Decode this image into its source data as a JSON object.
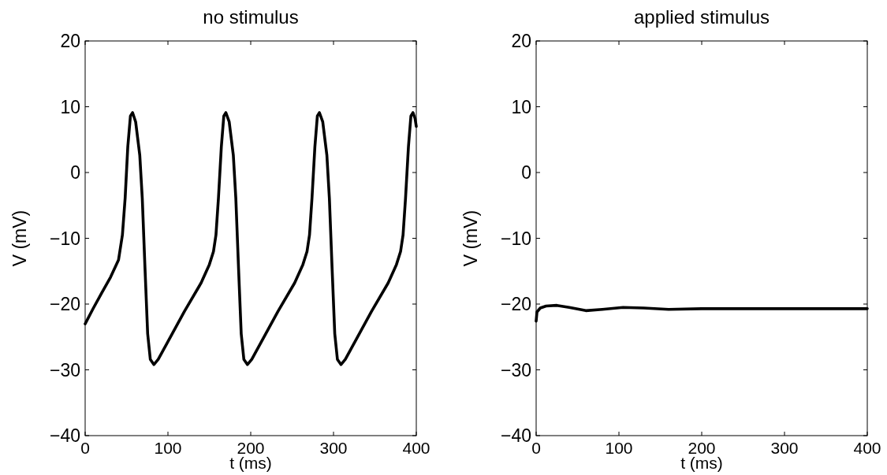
{
  "chart_data": [
    {
      "type": "line",
      "title": "no stimulus",
      "xlabel": "t (ms)",
      "ylabel": "V (mV)",
      "xlim": [
        0,
        400
      ],
      "ylim": [
        -40,
        20
      ],
      "xticks": [
        0,
        100,
        200,
        300,
        400
      ],
      "yticks": [
        -40,
        -30,
        -20,
        -10,
        0,
        10,
        20
      ],
      "grid": false,
      "marker": "none",
      "line_style": "solid",
      "series": [
        {
          "color": "#000000",
          "x": [
            0,
            10,
            20,
            30.7,
            40.3,
            45,
            48.3,
            51.5,
            54.7,
            57.3,
            61,
            66,
            69,
            72.3,
            75.5,
            78.7,
            83,
            88.3,
            100,
            120,
            140,
            150,
            155,
            158,
            161,
            164.5,
            167.5,
            170,
            174,
            179,
            182,
            185.3,
            188.5,
            191.7,
            196,
            201.3,
            213,
            233,
            253,
            263,
            268,
            271,
            274,
            277.5,
            280.5,
            283,
            287,
            292,
            295,
            298.3,
            301.5,
            304.7,
            309,
            314.3,
            326,
            346,
            366,
            376,
            381,
            384,
            387,
            390.5,
            393.5,
            396,
            398.5,
            400
          ],
          "values": [
            -23,
            -20.6,
            -18.3,
            -15.9,
            -13.3,
            -9.5,
            -3.9,
            3.9,
            8.6,
            9.1,
            7.7,
            2.6,
            -3.9,
            -14.6,
            -24.5,
            -28.4,
            -29.2,
            -28.4,
            -25.7,
            -21.1,
            -16.8,
            -14,
            -12,
            -9.5,
            -3.9,
            3.9,
            8.6,
            9.1,
            7.7,
            2.6,
            -3.9,
            -14.6,
            -24.5,
            -28.4,
            -29.2,
            -28.4,
            -25.7,
            -21.1,
            -16.8,
            -14,
            -12,
            -9.5,
            -3.9,
            3.9,
            8.6,
            9.1,
            7.7,
            2.6,
            -3.9,
            -14.6,
            -24.5,
            -28.4,
            -29.2,
            -28.4,
            -25.7,
            -21.1,
            -16.8,
            -14,
            -12,
            -9.5,
            -3.9,
            3.9,
            8.6,
            9.1,
            8.2,
            7
          ]
        }
      ]
    },
    {
      "type": "line",
      "title": "applied stimulus",
      "xlabel": "t (ms)",
      "ylabel": "V (mV)",
      "xlim": [
        0,
        400
      ],
      "ylim": [
        -40,
        20
      ],
      "xticks": [
        0,
        100,
        200,
        300,
        400
      ],
      "yticks": [
        -40,
        -30,
        -20,
        -10,
        0,
        10,
        20
      ],
      "grid": false,
      "marker": "none",
      "line_style": "solid",
      "series": [
        {
          "color": "#000000",
          "x": [
            0,
            1,
            5,
            12,
            25,
            40,
            60,
            80,
            105,
            130,
            160,
            200,
            300,
            400
          ],
          "values": [
            -22.6,
            -21.2,
            -20.6,
            -20.3,
            -20.2,
            -20.5,
            -21,
            -20.8,
            -20.5,
            -20.6,
            -20.8,
            -20.7,
            -20.7,
            -20.7
          ]
        }
      ]
    }
  ]
}
